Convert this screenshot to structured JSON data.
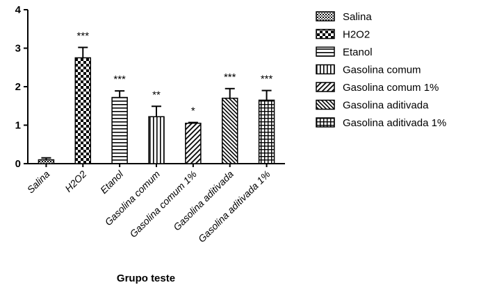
{
  "chart_data": {
    "type": "bar",
    "title": "",
    "xlabel": "Grupo teste",
    "ylabel": "",
    "ylim": [
      0,
      4
    ],
    "yticks": [
      "0",
      "1",
      "2",
      "3",
      "4"
    ],
    "grid": false,
    "legend_position": "right",
    "categories": [
      "Salina",
      "H2O2",
      "Etanol",
      "Gasolina comum",
      "Gasolina comum 1%",
      "Gasolina aditivada",
      "Gasolina aditivada 1%"
    ],
    "values": [
      0.1,
      2.75,
      1.72,
      1.22,
      1.05,
      1.7,
      1.65
    ],
    "errors": [
      0.05,
      0.27,
      0.17,
      0.27,
      0.02,
      0.25,
      0.25
    ],
    "significance": [
      "",
      "***",
      "***",
      "**",
      "*",
      "***",
      "***"
    ],
    "legend": [
      "Salina",
      "H2O2",
      "Etanol",
      "Gasolina comum",
      "Gasolina comum 1%",
      "Gasolina aditivada",
      "Gasolina aditivada 1%"
    ],
    "patterns": [
      "dots",
      "checker",
      "hlines",
      "vlines",
      "diag",
      "dense-diag",
      "grid"
    ]
  }
}
